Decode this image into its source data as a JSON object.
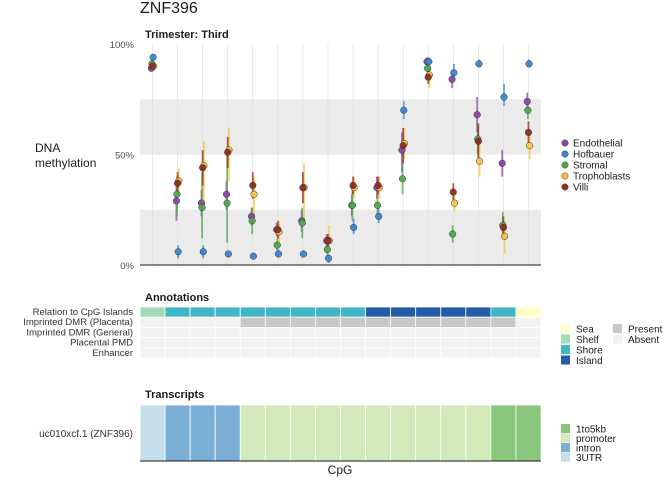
{
  "title": "ZNF396",
  "methylation": {
    "subtitle": "Trimester: Third",
    "ylabel_line1": "DNA",
    "ylabel_line2": "methylation",
    "ytick_labels": [
      "0%",
      "50%",
      "100%"
    ],
    "ylim": [
      0,
      1
    ],
    "grid": true,
    "shaded_bands": [
      [
        0,
        0.25
      ],
      [
        0.5,
        0.75
      ]
    ],
    "legend_position": "right",
    "legend": [
      {
        "name": "Endothelial",
        "color": "#8E44AD"
      },
      {
        "name": "Hofbauer",
        "color": "#3A86D4"
      },
      {
        "name": "Stromal",
        "color": "#4FA84A"
      },
      {
        "name": "Trophoblasts",
        "color": "#F7C43B"
      },
      {
        "name": "Villi",
        "color": "#922B21"
      }
    ]
  },
  "annotations": {
    "subtitle": "Annotations",
    "rows": [
      "Relation to CpG Islands",
      "Imprinted DMR (Placenta)",
      "Imprinted DMR (General)",
      "Placental PMD",
      "Enhancer"
    ],
    "cpg_relation": [
      "Shelf",
      "Shore",
      "Shore",
      "Shore",
      "Shore",
      "Shore",
      "Shore",
      "Shore",
      "Shore",
      "Island",
      "Island",
      "Island",
      "Island",
      "Island",
      "Shore",
      "Sea"
    ],
    "imprinted_placenta": [
      "Absent",
      "Absent",
      "Absent",
      "Absent",
      "Present",
      "Present",
      "Present",
      "Present",
      "Present",
      "Present",
      "Present",
      "Present",
      "Present",
      "Present",
      "Present",
      "Absent"
    ],
    "legend_cpg": [
      {
        "name": "Sea",
        "color": "#FFFFCC"
      },
      {
        "name": "Shelf",
        "color": "#A1DAB4"
      },
      {
        "name": "Shore",
        "color": "#41B6C4"
      },
      {
        "name": "Island",
        "color": "#225EA8"
      }
    ],
    "legend_presence": [
      {
        "name": "Present",
        "color": "#C8C8C8"
      },
      {
        "name": "Absent",
        "color": "#F2F2F2"
      }
    ]
  },
  "transcripts": {
    "subtitle": "Transcripts",
    "row_label": "uc010xcf.1 (ZNF396)",
    "xlabel": "CpG",
    "cells": [
      "3UTR",
      "intron",
      "intron",
      "intron",
      "promoter",
      "promoter",
      "promoter",
      "promoter",
      "promoter",
      "promoter",
      "promoter",
      "promoter",
      "promoter",
      "promoter",
      "1to5kb",
      "1to5kb"
    ],
    "legend": [
      {
        "name": "1to5kb",
        "color": "#88C77B"
      },
      {
        "name": "promoter",
        "color": "#D2E9BA"
      },
      {
        "name": "intron",
        "color": "#7BAED4"
      },
      {
        "name": "3UTR",
        "color": "#C6DDEB"
      }
    ]
  },
  "chart_data": {
    "type": "scatter",
    "title": "ZNF396",
    "subtitle": "Trimester: Third",
    "xlabel": "CpG",
    "ylabel": "DNA methylation",
    "ylim": [
      0,
      1
    ],
    "n_cpg": 16,
    "series": [
      {
        "name": "Endothelial",
        "values": [
          0.89,
          0.29,
          0.28,
          0.32,
          0.22,
          0.16,
          0.2,
          0.11,
          0.27,
          0.35,
          0.52,
          0.92,
          0.84,
          0.68,
          0.46,
          0.74
        ],
        "low": [
          0.88,
          0.2,
          0.22,
          0.25,
          0.18,
          0.13,
          0.15,
          0.08,
          0.22,
          0.3,
          0.42,
          0.9,
          0.8,
          0.6,
          0.4,
          0.7
        ],
        "high": [
          0.9,
          0.36,
          0.34,
          0.38,
          0.26,
          0.19,
          0.25,
          0.14,
          0.32,
          0.4,
          0.6,
          0.94,
          0.88,
          0.76,
          0.52,
          0.78
        ]
      },
      {
        "name": "Hofbauer",
        "values": [
          0.94,
          0.06,
          0.06,
          0.05,
          0.04,
          0.05,
          0.05,
          0.03,
          0.17,
          0.22,
          0.7,
          0.92,
          0.87,
          0.91,
          0.76,
          0.91
        ],
        "low": [
          0.93,
          0.03,
          0.03,
          0.04,
          0.03,
          0.04,
          0.04,
          0.01,
          0.14,
          0.19,
          0.66,
          0.9,
          0.83,
          0.9,
          0.72,
          0.9
        ],
        "high": [
          0.95,
          0.09,
          0.09,
          0.06,
          0.05,
          0.07,
          0.06,
          0.05,
          0.21,
          0.26,
          0.74,
          0.94,
          0.91,
          0.93,
          0.82,
          0.93
        ]
      },
      {
        "name": "Stromal",
        "values": [
          0.91,
          0.32,
          0.26,
          0.28,
          0.2,
          0.09,
          0.19,
          0.07,
          0.27,
          0.27,
          0.39,
          0.89,
          0.14,
          0.57,
          0.18,
          0.7
        ],
        "low": [
          0.9,
          0.22,
          0.12,
          0.1,
          0.14,
          0.06,
          0.12,
          0.04,
          0.2,
          0.22,
          0.32,
          0.86,
          0.1,
          0.5,
          0.12,
          0.66
        ],
        "high": [
          0.92,
          0.4,
          0.42,
          0.52,
          0.26,
          0.12,
          0.26,
          0.1,
          0.34,
          0.32,
          0.46,
          0.92,
          0.18,
          0.64,
          0.24,
          0.74
        ]
      },
      {
        "name": "Trophoblasts",
        "values": [
          0.9,
          0.38,
          0.45,
          0.52,
          0.32,
          0.15,
          0.35,
          0.11,
          0.35,
          0.35,
          0.55,
          0.86,
          0.28,
          0.47,
          0.13,
          0.54
        ],
        "low": [
          0.89,
          0.32,
          0.28,
          0.38,
          0.22,
          0.1,
          0.2,
          0.06,
          0.3,
          0.3,
          0.48,
          0.8,
          0.24,
          0.4,
          0.05,
          0.48
        ],
        "high": [
          0.91,
          0.44,
          0.56,
          0.62,
          0.4,
          0.2,
          0.46,
          0.18,
          0.4,
          0.4,
          0.62,
          0.9,
          0.32,
          0.55,
          0.2,
          0.6
        ]
      },
      {
        "name": "Villi",
        "values": [
          0.9,
          0.37,
          0.44,
          0.51,
          0.36,
          0.16,
          0.35,
          0.11,
          0.36,
          0.36,
          0.54,
          0.85,
          0.33,
          0.56,
          0.17,
          0.6
        ],
        "low": [
          0.89,
          0.32,
          0.36,
          0.44,
          0.3,
          0.12,
          0.28,
          0.08,
          0.32,
          0.32,
          0.46,
          0.82,
          0.29,
          0.48,
          0.12,
          0.55
        ],
        "high": [
          0.91,
          0.42,
          0.52,
          0.58,
          0.42,
          0.2,
          0.42,
          0.14,
          0.4,
          0.4,
          0.62,
          0.88,
          0.37,
          0.64,
          0.22,
          0.65
        ]
      }
    ]
  }
}
